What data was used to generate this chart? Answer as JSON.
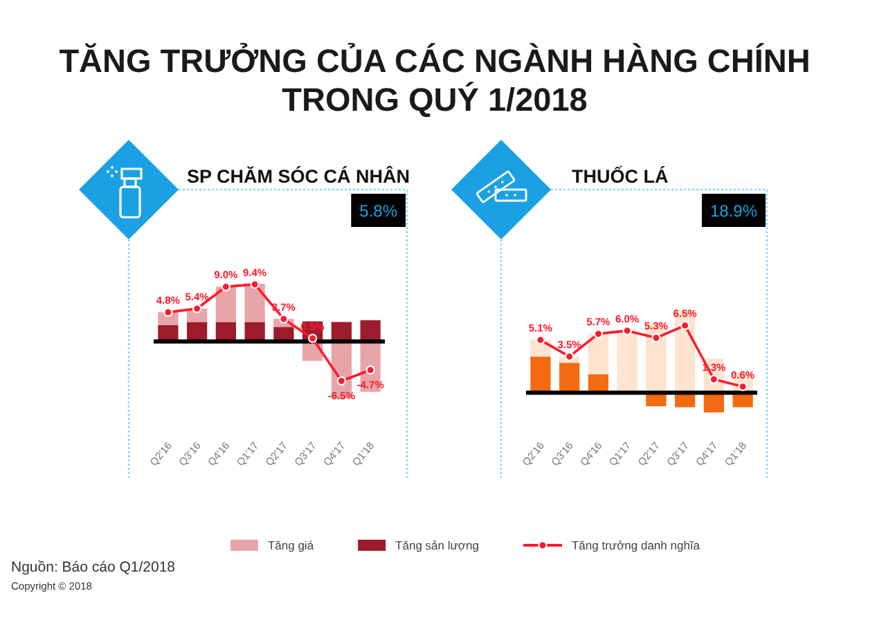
{
  "chart_data": [
    {
      "type": "other",
      "title": "TĂNG TRƯỞNG CỦA CÁC NGÀNH HÀNG CHÍNH TRONG QUÝ 1/2018",
      "annotations": [
        "Nguồn: Báo cáo Q1/2018",
        "Copyright © 2018"
      ]
    },
    {
      "type": "bar",
      "title": "SP CHĂM SÓC CÁ NHÂN",
      "annotations": [
        "5.8%"
      ],
      "categories": [
        "Q2'16",
        "Q3'16",
        "Q4'16",
        "Q1'17",
        "Q2'17",
        "Q3'17",
        "Q4'17",
        "Q1'18"
      ],
      "stacked": true,
      "series": [
        {
          "name": "Tăng sản lượng",
          "type": "bar",
          "color": "#9c1c2b",
          "values": [
            2.7,
            3.2,
            3.2,
            3.2,
            2.4,
            3.3,
            3.2,
            3.5
          ]
        },
        {
          "name": "Tăng giá",
          "type": "bar",
          "color": "#e8a5a9",
          "values": [
            2.1,
            2.2,
            5.8,
            6.3,
            1.3,
            -3.2,
            -9.4,
            -8.3
          ]
        },
        {
          "name": "Tăng trưởng danh nghĩa",
          "type": "line",
          "color": "#ff1a2b",
          "values": [
            4.8,
            5.4,
            9.0,
            9.4,
            3.7,
            0.5,
            -6.5,
            -4.7
          ],
          "value_labels": [
            "4.8%",
            "5.4%",
            "9.0%",
            "9.4%",
            "3.7%",
            "0.5%",
            "-6.5%",
            "-4.7%"
          ]
        }
      ],
      "tick_labels": "x",
      "marker": "circle",
      "legend": "bottom"
    },
    {
      "type": "bar",
      "title": "THUỐC LÁ",
      "annotations": [
        "18.9%"
      ],
      "categories": [
        "Q2'16",
        "Q3'16",
        "Q4'16",
        "Q1'17",
        "Q2'17",
        "Q3'17",
        "Q4'17",
        "Q1'18"
      ],
      "stacked": true,
      "series": [
        {
          "type": "bar",
          "color": "#f36b10",
          "values": [
            3.5,
            2.9,
            1.8,
            0,
            -1.3,
            -1.4,
            -1.9,
            -1.4
          ]
        },
        {
          "type": "bar",
          "color": "#fde4d0",
          "values": [
            1.6,
            0.6,
            3.9,
            6.0,
            6.8,
            8.0,
            3.3,
            2.0
          ]
        },
        {
          "type": "line",
          "color": "#ff1a2b",
          "values": [
            5.1,
            3.5,
            5.7,
            6.0,
            5.3,
            6.5,
            1.3,
            0.6
          ],
          "value_labels": [
            "5.1%",
            "3.5%",
            "5.7%",
            "6.0%",
            "5.3%",
            "6.5%",
            "1.3%",
            "0.6%"
          ]
        }
      ],
      "tick_labels": "x",
      "marker": "circle"
    }
  ]
}
